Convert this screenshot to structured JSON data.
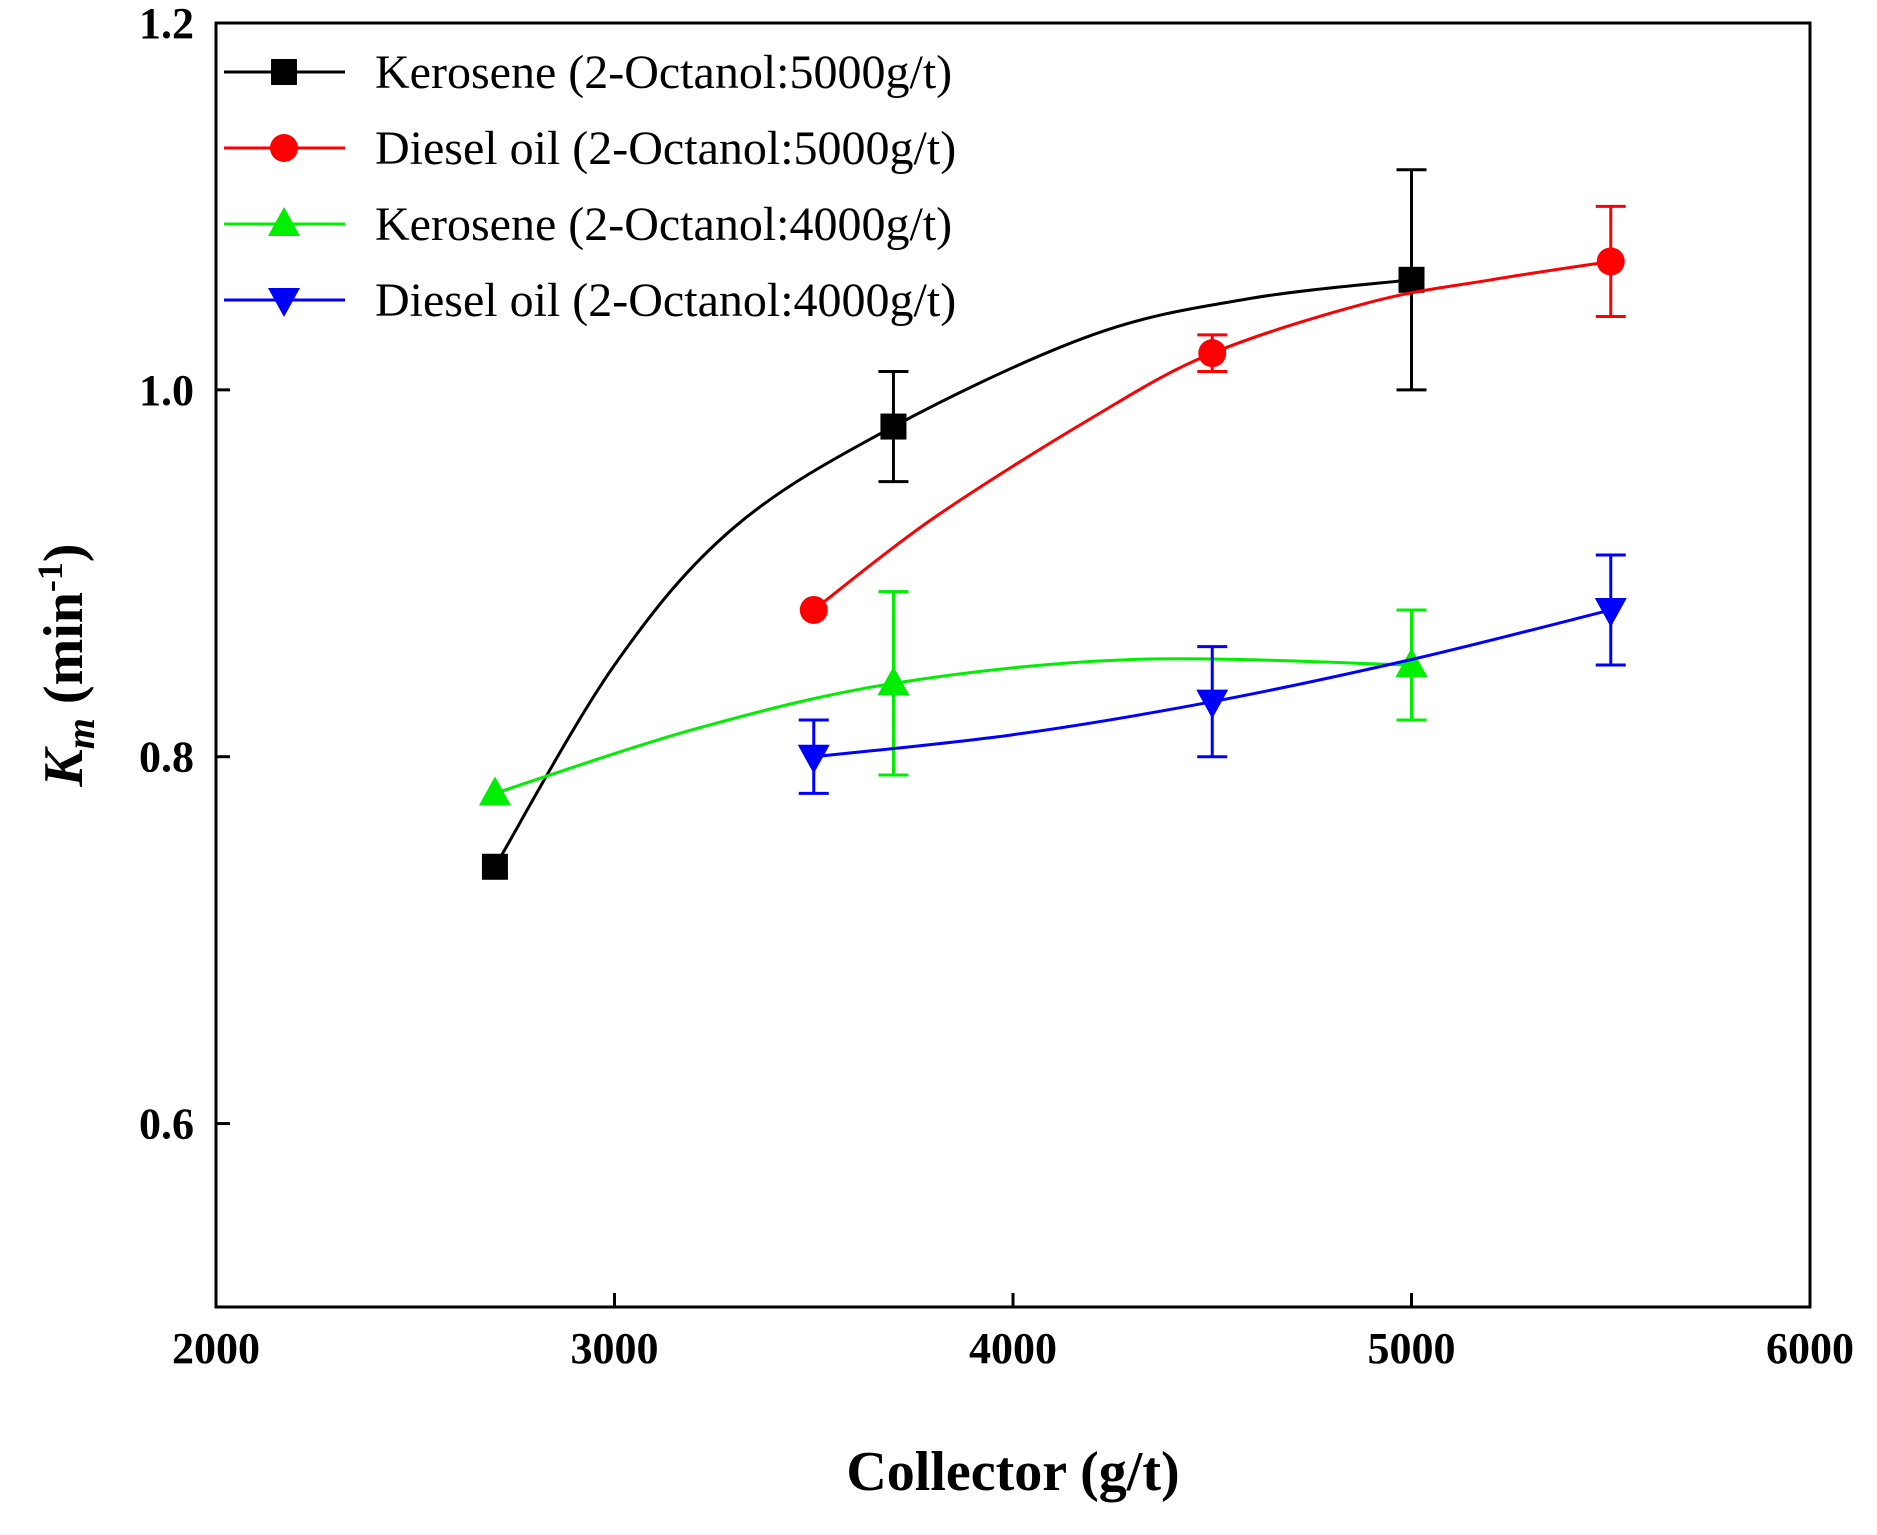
{
  "chart_data": {
    "type": "line",
    "title": "",
    "xlabel": "Collector (g/t)",
    "ylabel": "K",
    "ylabel_subscript": "m",
    "ylabel_unit_open": " (min",
    "ylabel_unit_sup": "-1",
    "ylabel_unit_close": ")",
    "xlim": [
      2000,
      6000
    ],
    "ylim": [
      0.5,
      1.2
    ],
    "xticks": [
      2000,
      3000,
      4000,
      5000,
      6000
    ],
    "xtick_labels": [
      "2000",
      "3000",
      "4000",
      "5000",
      "6000"
    ],
    "yticks": [
      0.6,
      0.8,
      1.0,
      1.2
    ],
    "ytick_labels": [
      "0.6",
      "0.8",
      "1.0",
      "1.2"
    ],
    "grid": false,
    "legend_position": "top-left",
    "series": [
      {
        "name": "Kerosene (2-Octanol:5000g/t)",
        "color": "#000000",
        "marker": "square",
        "x": [
          2700,
          3700,
          5000
        ],
        "y": [
          0.74,
          0.98,
          1.06
        ],
        "error": [
          0,
          0.03,
          0.06
        ],
        "curve": [
          [
            2700,
            0.74
          ],
          [
            3000,
            0.85
          ],
          [
            3300,
            0.925
          ],
          [
            3700,
            0.98
          ],
          [
            4200,
            1.03
          ],
          [
            4600,
            1.05
          ],
          [
            5000,
            1.06
          ]
        ]
      },
      {
        "name": "Diesel oil (2-Octanol:5000g/t)",
        "color": "#ff0000",
        "marker": "circle",
        "x": [
          3500,
          4500,
          5500
        ],
        "y": [
          0.88,
          1.02,
          1.07
        ],
        "error": [
          0,
          0.01,
          0.03
        ],
        "curve": [
          [
            3500,
            0.88
          ],
          [
            3800,
            0.93
          ],
          [
            4200,
            0.985
          ],
          [
            4500,
            1.02
          ],
          [
            4900,
            1.048
          ],
          [
            5200,
            1.06
          ],
          [
            5500,
            1.07
          ]
        ]
      },
      {
        "name": "Kerosene (2-Octanol:4000g/t)",
        "color": "#00ee00",
        "marker": "triangle-up",
        "x": [
          2700,
          3700,
          5000
        ],
        "y": [
          0.78,
          0.84,
          0.85
        ],
        "error": [
          0,
          0.05,
          0.03
        ],
        "curve": [
          [
            2700,
            0.78
          ],
          [
            3200,
            0.815
          ],
          [
            3700,
            0.84
          ],
          [
            4300,
            0.853
          ],
          [
            5000,
            0.85
          ]
        ]
      },
      {
        "name": "Diesel oil (2-Octanol:4000g/t)",
        "color": "#0000ff",
        "marker": "triangle-down",
        "x": [
          3500,
          4500,
          5500
        ],
        "y": [
          0.8,
          0.83,
          0.88
        ],
        "error": [
          0.02,
          0.03,
          0.03
        ],
        "curve": [
          [
            3500,
            0.8
          ],
          [
            4000,
            0.812
          ],
          [
            4500,
            0.83
          ],
          [
            5000,
            0.853
          ],
          [
            5500,
            0.88
          ]
        ]
      }
    ]
  }
}
